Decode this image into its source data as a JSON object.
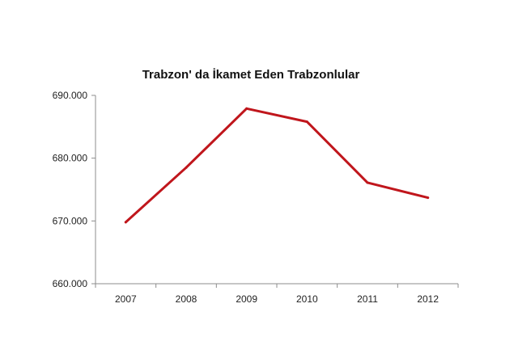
{
  "chart_data": {
    "type": "line",
    "title": "Trabzon' da İkamet Eden Trabzonlular",
    "xlabel": "",
    "ylabel": "",
    "categories": [
      "2007",
      "2008",
      "2009",
      "2010",
      "2011",
      "2012"
    ],
    "series": [
      {
        "values": [
          669800,
          678500,
          687900,
          685800,
          676100,
          673700
        ],
        "color": "#c0161c"
      }
    ],
    "ylim": [
      660000,
      690000
    ],
    "y_ticks": [
      660000,
      670000,
      680000,
      690000
    ],
    "y_tick_labels": [
      "660.000",
      "670.000",
      "680.000",
      "690.000"
    ],
    "grid": false,
    "legend": "none"
  }
}
